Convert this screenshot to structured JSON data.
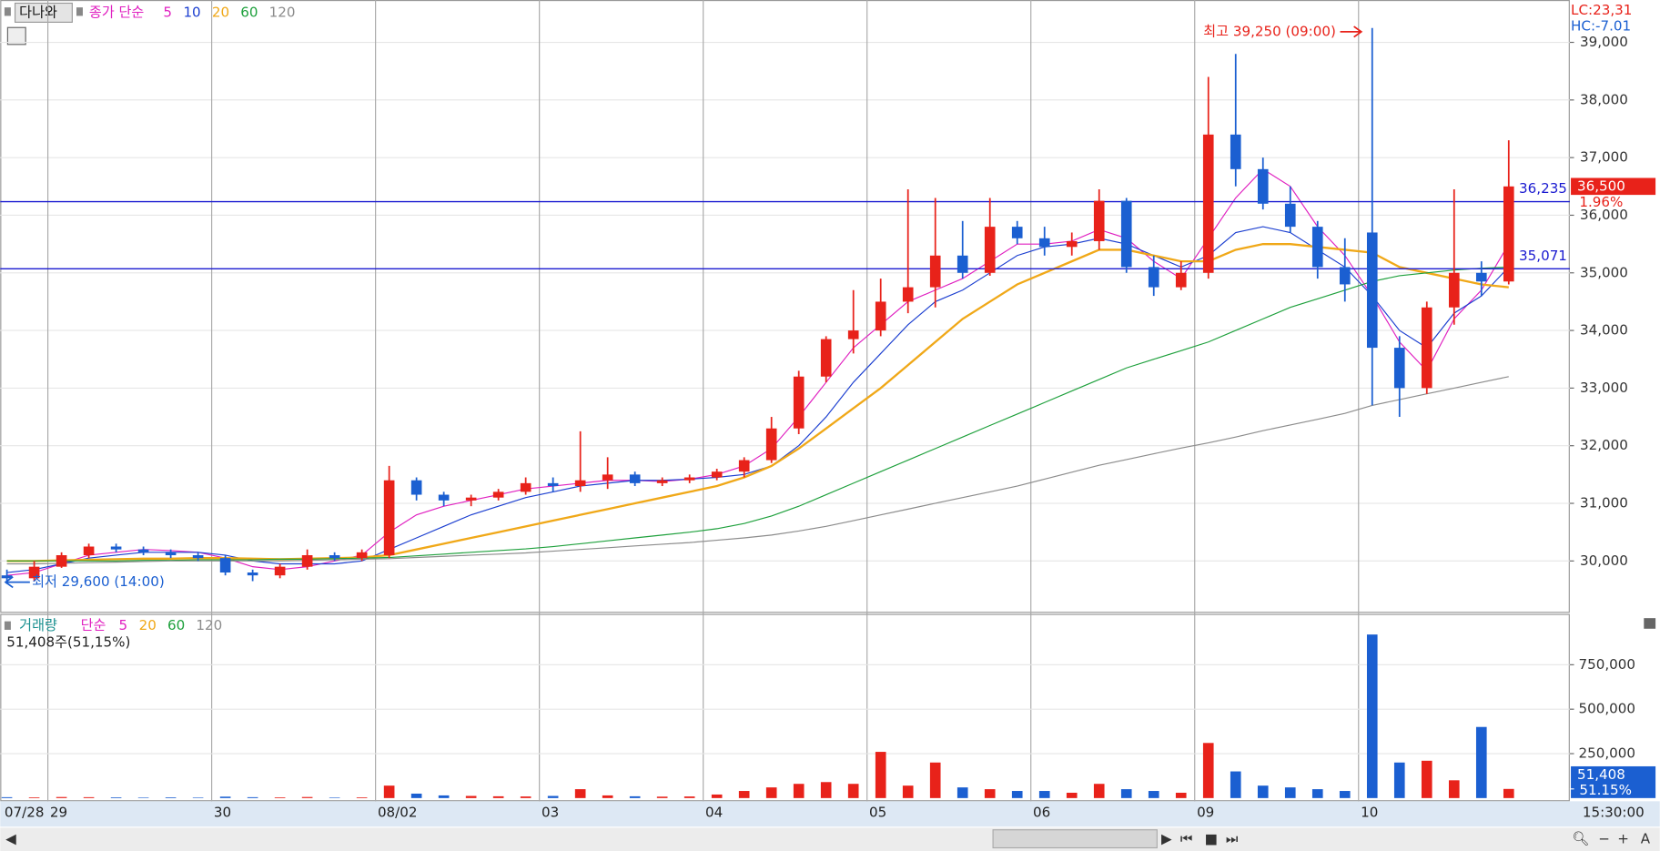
{
  "header": {
    "stock": "다나와",
    "lc": "LC:23,31",
    "hc": "HC:-7.01",
    "time": "15:30:00"
  },
  "chart_data": [
    {
      "type": "candlestick",
      "legend_label": "종가 단순",
      "categories": [
        "07/28",
        null,
        "29",
        null,
        null,
        null,
        null,
        null,
        "30",
        null,
        null,
        null,
        null,
        null,
        "08/02",
        null,
        null,
        null,
        null,
        null,
        "03",
        null,
        null,
        null,
        null,
        null,
        "04",
        null,
        null,
        null,
        null,
        null,
        "05",
        null,
        null,
        null,
        null,
        null,
        "06",
        null,
        null,
        null,
        null,
        null,
        "09",
        null,
        null,
        null,
        null,
        null,
        "10",
        null,
        null,
        null,
        null,
        null
      ],
      "open": [
        29750,
        29700,
        29900,
        30100,
        30250,
        30200,
        30150,
        30100,
        30050,
        29800,
        29750,
        29900,
        30100,
        30050,
        30100,
        31400,
        31150,
        31050,
        31100,
        31200,
        31350,
        31300,
        31400,
        31500,
        31350,
        31400,
        31450,
        31550,
        31750,
        32300,
        33200,
        33850,
        34000,
        34500,
        34750,
        35300,
        35000,
        35800,
        35600,
        35450,
        35550,
        36250,
        35100,
        34750,
        35000,
        37400,
        36800,
        36200,
        35800,
        35100,
        35700,
        33700,
        33000,
        34400,
        35000,
        34850
      ],
      "high": [
        29850,
        30000,
        30150,
        30300,
        30300,
        30250,
        30200,
        30150,
        30100,
        29850,
        29950,
        30200,
        30150,
        30200,
        31650,
        31450,
        31200,
        31150,
        31250,
        31450,
        31450,
        32250,
        31800,
        31550,
        31450,
        31500,
        31600,
        31800,
        32500,
        33300,
        33900,
        34700,
        34900,
        36450,
        36300,
        35900,
        36300,
        35900,
        35800,
        35700,
        36450,
        36300,
        35300,
        35200,
        38400,
        38800,
        37000,
        36500,
        35900,
        35600,
        39250,
        33900,
        34500,
        36450,
        35200,
        37300
      ],
      "low": [
        29600,
        29650,
        29880,
        30050,
        30150,
        30100,
        30050,
        30000,
        29750,
        29650,
        29700,
        29850,
        30000,
        30000,
        30050,
        31050,
        30950,
        30950,
        31050,
        31150,
        31200,
        31200,
        31250,
        31300,
        31300,
        31350,
        31400,
        31450,
        31700,
        32200,
        33100,
        33600,
        33900,
        34300,
        34400,
        34900,
        34950,
        35500,
        35300,
        35300,
        35400,
        35000,
        34600,
        34700,
        34900,
        36500,
        36100,
        35700,
        34900,
        34500,
        32700,
        32500,
        32900,
        34100,
        34600,
        34800
      ],
      "close": [
        29700,
        29900,
        30100,
        30250,
        30200,
        30150,
        30100,
        30050,
        29800,
        29750,
        29900,
        30100,
        30050,
        30150,
        31400,
        31150,
        31050,
        31100,
        31200,
        31350,
        31300,
        31400,
        31500,
        31350,
        31400,
        31450,
        31550,
        31750,
        32300,
        33200,
        33850,
        34000,
        34500,
        34750,
        35300,
        35000,
        35800,
        35600,
        35450,
        35550,
        36250,
        35100,
        34750,
        35000,
        37400,
        36800,
        36200,
        35800,
        35100,
        34800,
        33700,
        33000,
        34400,
        35000,
        34850,
        36500
      ],
      "up_color": "#e8221a",
      "down_color": "#1b5fd1",
      "series": [
        {
          "name": "5",
          "color": "#e020c0",
          "values": [
            29750,
            29800,
            29950,
            30100,
            30150,
            30200,
            30180,
            30150,
            30050,
            29900,
            29850,
            29900,
            30000,
            30100,
            30500,
            30800,
            30950,
            31050,
            31150,
            31250,
            31300,
            31350,
            31400,
            31400,
            31380,
            31420,
            31500,
            31650,
            31950,
            32500,
            33100,
            33700,
            34100,
            34500,
            34700,
            34900,
            35200,
            35500,
            35500,
            35550,
            35750,
            35600,
            35200,
            34900,
            35600,
            36300,
            36800,
            36500,
            35800,
            35300,
            34600,
            33800,
            33300,
            34200,
            34700,
            35500
          ]
        },
        {
          "name": "10",
          "color": "#1c3fd0",
          "values": [
            29800,
            29850,
            29950,
            30050,
            30100,
            30150,
            30150,
            30150,
            30100,
            30000,
            29950,
            29950,
            29950,
            30000,
            30200,
            30400,
            30600,
            30800,
            30950,
            31100,
            31200,
            31300,
            31350,
            31400,
            31400,
            31420,
            31450,
            31500,
            31650,
            32000,
            32500,
            33100,
            33600,
            34100,
            34500,
            34700,
            35000,
            35300,
            35450,
            35500,
            35600,
            35500,
            35300,
            35100,
            35300,
            35700,
            35800,
            35700,
            35400,
            35100,
            34600,
            34000,
            33700,
            34300,
            34600,
            35100
          ]
        },
        {
          "name": "20",
          "color": "#f0a818",
          "values": [
            30000,
            30000,
            30010,
            30020,
            30030,
            30040,
            30040,
            30050,
            30050,
            30040,
            30030,
            30040,
            30050,
            30060,
            30100,
            30200,
            30300,
            30400,
            30500,
            30600,
            30700,
            30800,
            30900,
            31000,
            31100,
            31200,
            31300,
            31450,
            31650,
            31950,
            32300,
            32650,
            33000,
            33400,
            33800,
            34200,
            34500,
            34800,
            35000,
            35200,
            35400,
            35400,
            35300,
            35200,
            35200,
            35400,
            35500,
            35500,
            35450,
            35400,
            35350,
            35100,
            35000,
            34900,
            34800,
            34750
          ]
        },
        {
          "name": "60",
          "color": "#1ea03c",
          "values": [
            30000,
            30000,
            30000,
            30000,
            30000,
            30010,
            30010,
            30020,
            30020,
            30020,
            30030,
            30030,
            30040,
            30050,
            30060,
            30090,
            30120,
            30150,
            30180,
            30210,
            30250,
            30300,
            30350,
            30400,
            30450,
            30500,
            30560,
            30650,
            30780,
            30950,
            31150,
            31350,
            31550,
            31750,
            31950,
            32150,
            32350,
            32550,
            32750,
            32950,
            33150,
            33350,
            33500,
            33650,
            33800,
            34000,
            34200,
            34400,
            34550,
            34700,
            34850,
            34950,
            35000,
            35050,
            35080,
            35100
          ]
        },
        {
          "name": "120",
          "color": "#8c8c8c",
          "values": [
            29950,
            29950,
            29960,
            29970,
            29980,
            29990,
            30000,
            30000,
            30000,
            30000,
            30000,
            30010,
            30020,
            30030,
            30040,
            30060,
            30080,
            30100,
            30120,
            30140,
            30170,
            30200,
            30230,
            30260,
            30290,
            30320,
            30360,
            30400,
            30450,
            30520,
            30600,
            30700,
            30800,
            30900,
            31000,
            31100,
            31200,
            31300,
            31420,
            31540,
            31660,
            31760,
            31860,
            31960,
            32050,
            32150,
            32260,
            32360,
            32460,
            32560,
            32700,
            32800,
            32900,
            33000,
            33100,
            33200
          ]
        }
      ],
      "ylim": [
        29118,
        39735
      ],
      "yticks": [
        {
          "value": 30000,
          "label": "30,000"
        },
        {
          "value": 31000,
          "label": "31,000"
        },
        {
          "value": 32000,
          "label": "32,000"
        },
        {
          "value": 33000,
          "label": "33,000"
        },
        {
          "value": 34000,
          "label": "34,000"
        },
        {
          "value": 35000,
          "label": "35,000"
        },
        {
          "value": 36000,
          "label": "36,000"
        },
        {
          "value": 37000,
          "label": "37,000"
        },
        {
          "value": 38000,
          "label": "38,000"
        },
        {
          "value": 39000,
          "label": "39,000"
        }
      ],
      "hlines": [
        {
          "value": 36235,
          "label": "36,235"
        },
        {
          "value": 35071,
          "label": "35,071"
        }
      ],
      "hline_color": "#1a1ad0",
      "last_price": {
        "value": 36500,
        "label": "36,500"
      },
      "change_label": "1.96%",
      "annotations": [
        "최고 39,250 (09:00)",
        "최저 29,600 (14:00)"
      ]
    },
    {
      "type": "bar",
      "legend_label": "거래량",
      "ma_label": "단순",
      "legend": [
        {
          "name": "5",
          "color": "#e020c0"
        },
        {
          "name": "20",
          "color": "#f0a818"
        },
        {
          "name": "60",
          "color": "#1ea03c"
        },
        {
          "name": "120",
          "color": "#8c8c8c"
        }
      ],
      "info": "51,408주(51,15%)",
      "values": [
        5000,
        4000,
        6000,
        5000,
        4000,
        3000,
        4000,
        3000,
        8000,
        5000,
        4000,
        6000,
        3000,
        4000,
        70000,
        25000,
        15000,
        12000,
        10000,
        9000,
        12000,
        50000,
        15000,
        10000,
        8000,
        9000,
        20000,
        40000,
        60000,
        80000,
        90000,
        80000,
        260000,
        70000,
        200000,
        60000,
        50000,
        40000,
        40000,
        30000,
        80000,
        50000,
        40000,
        30000,
        310000,
        150000,
        70000,
        60000,
        50000,
        40000,
        920000,
        200000,
        210000,
        100000,
        400000,
        51408
      ],
      "last_value": {
        "value": 51408,
        "label": "51,408"
      },
      "last_ratio": "51.15%",
      "ylim": [
        0,
        1024000
      ],
      "yticks": [
        {
          "value": 250000,
          "label": "250,000"
        },
        {
          "value": 500000,
          "label": "500,000"
        },
        {
          "value": 750000,
          "label": "750,000"
        }
      ]
    }
  ]
}
